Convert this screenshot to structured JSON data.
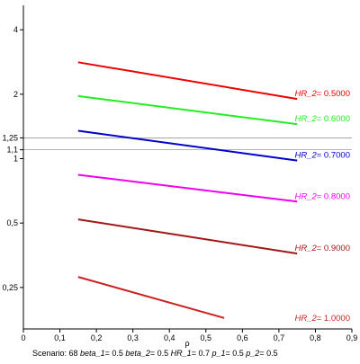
{
  "chart_data": {
    "type": "line",
    "xlabel": "ρ",
    "xlim": [
      0,
      0.9
    ],
    "ylim": [
      0.16,
      5.2
    ],
    "yscale": "log",
    "x_ticks": [
      {
        "value": 0,
        "label": "0"
      },
      {
        "value": 0.1,
        "label": "0,1"
      },
      {
        "value": 0.2,
        "label": "0,2"
      },
      {
        "value": 0.3,
        "label": "0,3"
      },
      {
        "value": 0.4,
        "label": "0,4"
      },
      {
        "value": 0.5,
        "label": "0,5"
      },
      {
        "value": 0.6,
        "label": "0,6"
      },
      {
        "value": 0.7,
        "label": "0,7"
      },
      {
        "value": 0.8,
        "label": "0,8"
      },
      {
        "value": 0.9,
        "label": "0,9"
      }
    ],
    "y_ticks": [
      {
        "value": 0.25,
        "label": "0,25"
      },
      {
        "value": 0.5,
        "label": "0,5"
      },
      {
        "value": 1,
        "label": "1"
      },
      {
        "value": 1.1,
        "label": "1,1"
      },
      {
        "value": 1.25,
        "label": "1,25"
      },
      {
        "value": 2,
        "label": "2"
      },
      {
        "value": 4,
        "label": "4"
      }
    ],
    "reference_lines": [
      1.1,
      1.25
    ],
    "grid": false,
    "series": [
      {
        "name": "0.5000",
        "color": "#ee0000",
        "x": [
          0.15,
          0.75
        ],
        "y": [
          2.82,
          1.9
        ]
      },
      {
        "name": "0.6000",
        "color": "#22ee22",
        "x": [
          0.15,
          0.75
        ],
        "y": [
          1.96,
          1.45
        ]
      },
      {
        "name": "0.7000",
        "color": "#0000cc",
        "x": [
          0.15,
          0.75
        ],
        "y": [
          1.35,
          0.98
        ]
      },
      {
        "name": "0.8000",
        "color": "#ee00ee",
        "x": [
          0.15,
          0.75
        ],
        "y": [
          0.84,
          0.63
        ]
      },
      {
        "name": "0.9000",
        "color": "#a01818",
        "x": [
          0.15,
          0.75
        ],
        "y": [
          0.52,
          0.36
        ]
      },
      {
        "name": "1.0000",
        "color": "#cc2222",
        "x": [
          0.15,
          0.55
        ],
        "y": [
          0.28,
          0.18
        ]
      }
    ],
    "series_label_prefix": "HR_2",
    "series_label_sep": "= ",
    "caption": [
      {
        "text": "Scenario: 68",
        "italic": false
      },
      {
        "text": "beta_1",
        "italic": true
      },
      {
        "text": "= 0.5",
        "italic": false
      },
      {
        "text": "beta_2",
        "italic": true
      },
      {
        "text": "= 0.5",
        "italic": false
      },
      {
        "text": "HR_1",
        "italic": true
      },
      {
        "text": "= 0.7",
        "italic": false
      },
      {
        "text": "p_1",
        "italic": true
      },
      {
        "text": "= 0.5",
        "italic": false
      },
      {
        "text": "p_2",
        "italic": true
      },
      {
        "text": "= 0.5",
        "italic": false
      }
    ]
  }
}
